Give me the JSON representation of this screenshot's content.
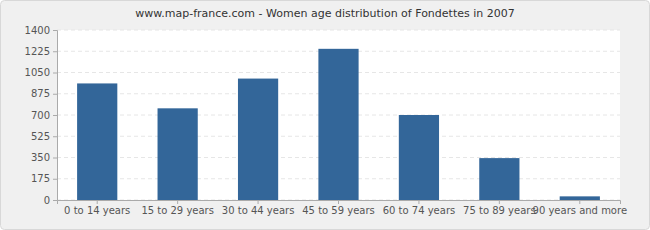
{
  "chart_data": {
    "type": "bar",
    "title": "www.map-france.com - Women age distribution of Fondettes in 2007",
    "categories": [
      "0 to 14 years",
      "15 to 29 years",
      "30 to 44 years",
      "45 to 59 years",
      "60 to 74 years",
      "75 to 89 years",
      "90 years and more"
    ],
    "values": [
      960,
      755,
      1000,
      1245,
      700,
      345,
      30
    ],
    "color": "#336699",
    "ylim": [
      0,
      1400
    ],
    "yticks": [
      0,
      175,
      350,
      525,
      700,
      875,
      1050,
      1225,
      1400
    ],
    "grid": true
  }
}
